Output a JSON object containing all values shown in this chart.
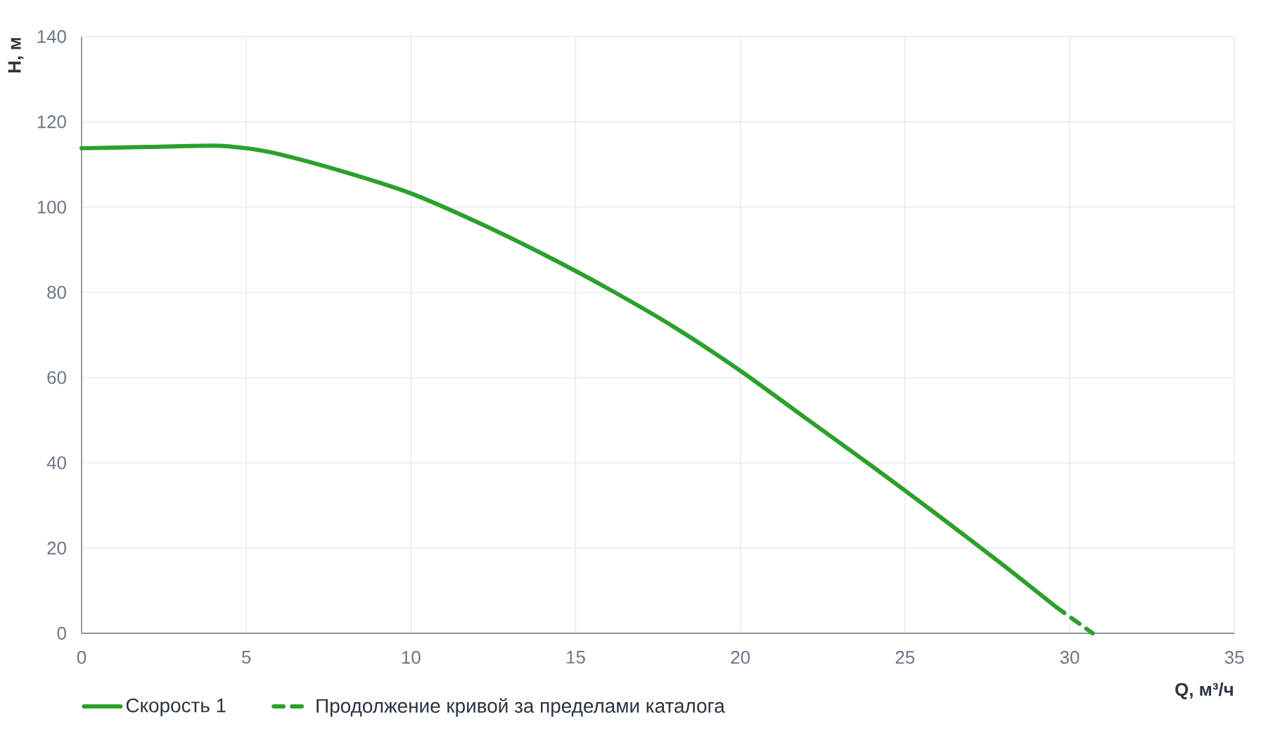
{
  "chart_data": {
    "type": "line",
    "xlabel": "Q, м³/ч",
    "ylabel": "H, м",
    "xlim": [
      0,
      35
    ],
    "ylim": [
      0,
      140
    ],
    "xticks": [
      0,
      5,
      10,
      15,
      20,
      25,
      30,
      35
    ],
    "yticks": [
      0,
      20,
      40,
      60,
      80,
      100,
      120,
      140
    ],
    "grid": true,
    "legend": "bottom left",
    "series": [
      {
        "name": "Скорость 1",
        "color": "#2ca02c",
        "line_style": "solid",
        "x": [
          0,
          2,
          4,
          5,
          6,
          8,
          10,
          12,
          14,
          16,
          18,
          20,
          22,
          24,
          26,
          28,
          29.6
        ],
        "values": [
          113.8,
          114.1,
          114.4,
          113.8,
          112.4,
          108.2,
          103.2,
          96.5,
          89.0,
          80.8,
          71.8,
          61.6,
          50.4,
          39.2,
          27.7,
          15.9,
          6.1
        ]
      },
      {
        "name": "Продолжение кривой за пределами каталога",
        "color": "#2ca02c",
        "line_style": "dashed",
        "x": [
          29.6,
          30.7
        ],
        "values": [
          6.1,
          0
        ]
      }
    ]
  }
}
